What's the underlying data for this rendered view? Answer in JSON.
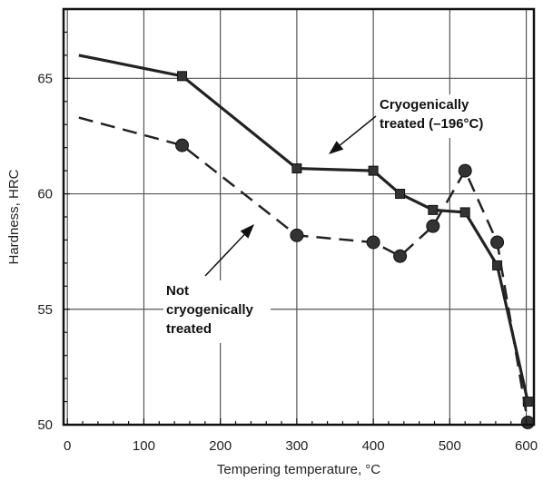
{
  "chart_data": {
    "type": "line",
    "xlabel": "Tempering temperature, °C",
    "ylabel": "Hardness, HRC",
    "xlim": [
      -5,
      610
    ],
    "ylim": [
      50,
      68
    ],
    "xticks": [
      0,
      100,
      200,
      300,
      400,
      500,
      600
    ],
    "yticks": [
      50,
      55,
      60,
      65
    ],
    "grid": true,
    "series": [
      {
        "id": "cryo",
        "marker": "square",
        "line_style": "solid",
        "x": [
          15,
          150,
          300,
          400,
          435,
          478,
          520,
          562,
          602
        ],
        "y": [
          66.0,
          65.1,
          61.1,
          61.0,
          60.0,
          59.3,
          59.2,
          56.9,
          51.0
        ]
      },
      {
        "id": "notcryo",
        "marker": "circle",
        "line_style": "dashed",
        "x": [
          15,
          150,
          300,
          400,
          435,
          478,
          520,
          562,
          602
        ],
        "y": [
          63.3,
          62.1,
          58.2,
          57.9,
          57.3,
          58.6,
          61.0,
          57.9,
          50.1
        ]
      }
    ],
    "annotations": [
      {
        "id": "cryo",
        "lines": [
          "Cryogenically",
          "treated (–196°C)"
        ]
      },
      {
        "id": "notcryo",
        "lines": [
          "Not",
          "cryogenically",
          "treated"
        ]
      }
    ]
  }
}
